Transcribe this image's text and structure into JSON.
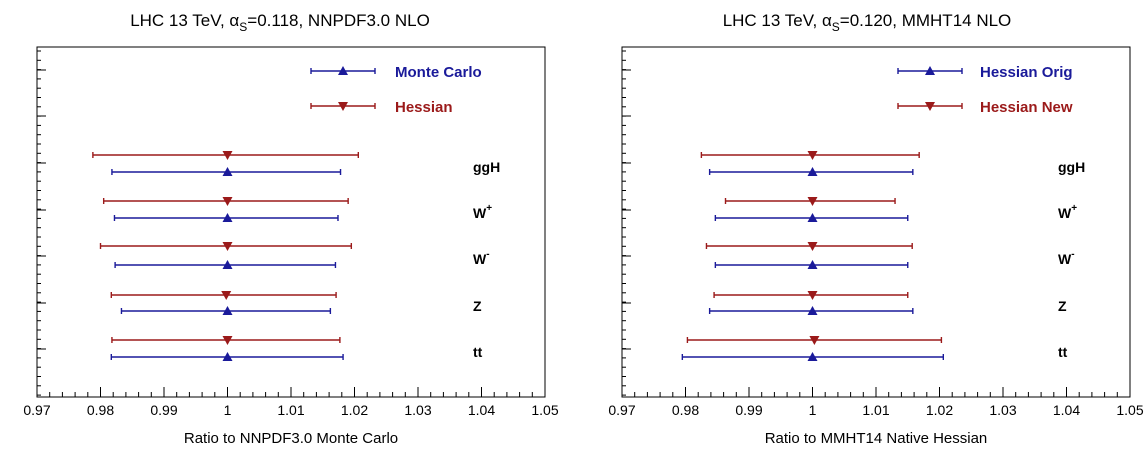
{
  "chart_data": [
    {
      "type": "errorbar",
      "title": "LHC 13 TeV, αS=0.118, NNPDF3.0 NLO",
      "title_parts": {
        "pre": "LHC 13 TeV, α",
        "sub": "S",
        "post": "=0.118, NNPDF3.0 NLO"
      },
      "xlabel": "Ratio to NNPDF3.0 Monte Carlo",
      "xlim": [
        0.97,
        1.05
      ],
      "xticks": [
        "0.97",
        "0.98",
        "0.99",
        "1",
        "1.01",
        "1.02",
        "1.03",
        "1.04",
        "1.05"
      ],
      "legend_position": "top-right",
      "processes": [
        {
          "label": "ggH",
          "sup": ""
        },
        {
          "label": "W",
          "sup": "+"
        },
        {
          "label": "W",
          "sup": "-"
        },
        {
          "label": "Z",
          "sup": ""
        },
        {
          "label": "tt",
          "sup": ""
        }
      ],
      "series": [
        {
          "name": "Monte Carlo",
          "color": "#1a1a9a",
          "marker": "triangle-up",
          "points": [
            {
              "center": 1.0,
              "low": 0.9818,
              "high": 1.0178
            },
            {
              "center": 1.0,
              "low": 0.9822,
              "high": 1.0174
            },
            {
              "center": 1.0,
              "low": 0.9823,
              "high": 1.017
            },
            {
              "center": 1.0,
              "low": 0.9833,
              "high": 1.0162
            },
            {
              "center": 1.0,
              "low": 0.9817,
              "high": 1.0182
            }
          ]
        },
        {
          "name": "Hessian",
          "color": "#9b1a1a",
          "marker": "triangle-down",
          "points": [
            {
              "center": 1.0,
              "low": 0.9788,
              "high": 1.0206
            },
            {
              "center": 1.0,
              "low": 0.9805,
              "high": 1.019
            },
            {
              "center": 1.0,
              "low": 0.98,
              "high": 1.0195
            },
            {
              "center": 0.9998,
              "low": 0.9817,
              "high": 1.0171
            },
            {
              "center": 1.0,
              "low": 0.9818,
              "high": 1.0177
            }
          ]
        }
      ]
    },
    {
      "type": "errorbar",
      "title": "LHC 13 TeV, αS=0.120, MMHT14 NLO",
      "title_parts": {
        "pre": "LHC 13 TeV, α",
        "sub": "S",
        "post": "=0.120, MMHT14 NLO"
      },
      "xlabel": "Ratio to MMHT14 Native Hessian",
      "xlim": [
        0.97,
        1.05
      ],
      "xticks": [
        "0.97",
        "0.98",
        "0.99",
        "1",
        "1.01",
        "1.02",
        "1.03",
        "1.04",
        "1.05"
      ],
      "legend_position": "top-right",
      "processes": [
        {
          "label": "ggH",
          "sup": ""
        },
        {
          "label": "W",
          "sup": "+"
        },
        {
          "label": "W",
          "sup": "-"
        },
        {
          "label": "Z",
          "sup": ""
        },
        {
          "label": "tt",
          "sup": ""
        }
      ],
      "series": [
        {
          "name": "Hessian Orig",
          "color": "#1a1a9a",
          "marker": "triangle-up",
          "points": [
            {
              "center": 1.0,
              "low": 0.9838,
              "high": 1.0158
            },
            {
              "center": 1.0,
              "low": 0.9847,
              "high": 1.015
            },
            {
              "center": 1.0,
              "low": 0.9847,
              "high": 1.015
            },
            {
              "center": 1.0,
              "low": 0.9838,
              "high": 1.0158
            },
            {
              "center": 1.0,
              "low": 0.9795,
              "high": 1.0206
            }
          ]
        },
        {
          "name": "Hessian New",
          "color": "#9b1a1a",
          "marker": "triangle-down",
          "points": [
            {
              "center": 1.0,
              "low": 0.9825,
              "high": 1.0168
            },
            {
              "center": 1.0,
              "low": 0.9863,
              "high": 1.013
            },
            {
              "center": 1.0,
              "low": 0.9833,
              "high": 1.0157
            },
            {
              "center": 1.0,
              "low": 0.9845,
              "high": 1.015
            },
            {
              "center": 1.0003,
              "low": 0.9803,
              "high": 1.0203
            }
          ]
        }
      ]
    }
  ]
}
